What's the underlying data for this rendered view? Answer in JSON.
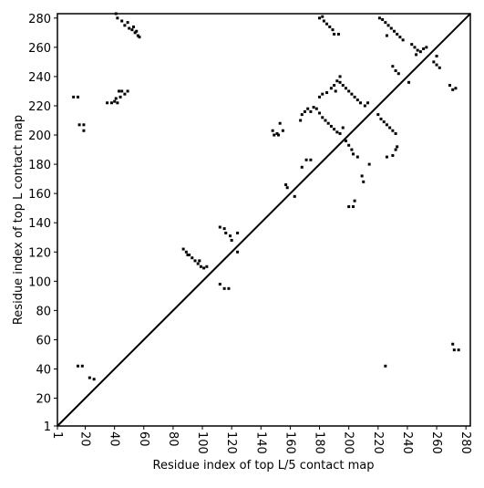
{
  "chart_data": {
    "type": "scatter",
    "xlabel": "Residue index of top L/5 contact map",
    "ylabel": "Residue index of top L contact map",
    "xlim": [
      1,
      283
    ],
    "ylim": [
      1,
      283
    ],
    "xticks": [
      1,
      20,
      40,
      60,
      80,
      100,
      120,
      140,
      160,
      180,
      200,
      220,
      240,
      260,
      280
    ],
    "yticks": [
      1,
      20,
      40,
      60,
      80,
      100,
      120,
      140,
      160,
      180,
      200,
      220,
      240,
      260,
      280
    ],
    "color": "#000000",
    "diagonal": true,
    "x": [
      41,
      42,
      45,
      47,
      49,
      50,
      52,
      53,
      54,
      56,
      57,
      55,
      12,
      15,
      35,
      38,
      40,
      42,
      41,
      43,
      45,
      47,
      49,
      44,
      16,
      19,
      19,
      15,
      18,
      23,
      26,
      87,
      89,
      91,
      93,
      95,
      97,
      99,
      101,
      103,
      90,
      98,
      112,
      115,
      116,
      119,
      120,
      124,
      124,
      112,
      115,
      118,
      148,
      149,
      151,
      152,
      155,
      153,
      157,
      158,
      163,
      167,
      168,
      170,
      172,
      174,
      176,
      178,
      180,
      182,
      184,
      186,
      188,
      190,
      192,
      194,
      196,
      171,
      174,
      168,
      180,
      182,
      183,
      185,
      187,
      189,
      190,
      193,
      180,
      182,
      185,
      188,
      190,
      192,
      194,
      196,
      198,
      200,
      202,
      204,
      206,
      208,
      211,
      213,
      191,
      194,
      198,
      200,
      202,
      203,
      206,
      209,
      210,
      214,
      200,
      203,
      204,
      221,
      223,
      225,
      227,
      229,
      231,
      233,
      235,
      237,
      226,
      230,
      232,
      234,
      241,
      243,
      245,
      247,
      249,
      251,
      253,
      246,
      258,
      260,
      262,
      260,
      269,
      271,
      273,
      220,
      222,
      224,
      226,
      228,
      230,
      232,
      233,
      230,
      232,
      226,
      225,
      271,
      272,
      275
    ],
    "y": [
      283,
      280,
      278,
      275,
      277,
      273,
      272,
      274,
      270,
      268,
      267,
      271,
      226,
      226,
      222,
      222,
      223,
      222,
      225,
      230,
      230,
      228,
      230,
      226,
      207,
      207,
      203,
      42,
      42,
      34,
      33,
      122,
      120,
      118,
      116,
      114,
      112,
      110,
      109,
      110,
      118,
      114,
      137,
      136,
      133,
      131,
      128,
      133,
      120,
      98,
      95,
      95,
      203,
      200,
      201,
      200,
      203,
      208,
      166,
      164,
      158,
      210,
      214,
      216,
      218,
      216,
      219,
      218,
      215,
      212,
      210,
      208,
      206,
      204,
      202,
      201,
      205,
      183,
      183,
      178,
      280,
      281,
      278,
      276,
      274,
      272,
      269,
      269,
      226,
      228,
      229,
      232,
      234,
      237,
      236,
      234,
      232,
      230,
      228,
      226,
      224,
      222,
      220,
      222,
      230,
      240,
      196,
      193,
      190,
      187,
      185,
      172,
      168,
      180,
      151,
      151,
      155,
      280,
      279,
      277,
      275,
      273,
      271,
      269,
      267,
      265,
      268,
      247,
      244,
      242,
      236,
      262,
      260,
      258,
      257,
      259,
      260,
      255,
      250,
      248,
      246,
      254,
      234,
      231,
      232,
      214,
      211,
      209,
      207,
      205,
      203,
      201,
      192,
      186,
      190,
      185,
      42,
      57,
      53,
      53
    ]
  }
}
